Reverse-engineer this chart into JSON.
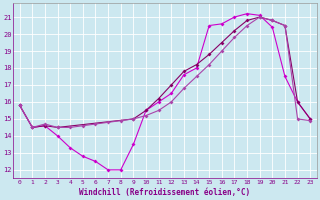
{
  "bg_color": "#cce8f0",
  "grid_color": "#ffffff",
  "line_color_1": "#cc00cc",
  "line_color_2": "#880066",
  "line_color_3": "#aa44aa",
  "xlabel": "Windchill (Refroidissement éolien,°C)",
  "xlim": [
    -0.5,
    23.5
  ],
  "ylim": [
    11.5,
    21.8
  ],
  "yticks": [
    12,
    13,
    14,
    15,
    16,
    17,
    18,
    19,
    20,
    21
  ],
  "xticks": [
    0,
    1,
    2,
    3,
    4,
    5,
    6,
    7,
    8,
    9,
    10,
    11,
    12,
    13,
    14,
    15,
    16,
    17,
    18,
    19,
    20,
    21,
    22,
    23
  ],
  "line1_x": [
    0,
    1,
    2,
    3,
    4,
    5,
    6,
    7,
    8,
    9,
    10,
    11,
    12,
    13,
    14,
    15,
    16,
    17,
    18,
    19,
    20,
    21,
    22,
    23
  ],
  "line1_y": [
    15.8,
    14.5,
    14.6,
    14.0,
    13.3,
    12.8,
    12.5,
    12.0,
    12.0,
    13.5,
    15.5,
    16.0,
    16.5,
    17.6,
    18.0,
    20.5,
    20.6,
    21.0,
    21.2,
    21.1,
    20.4,
    17.5,
    16.0,
    15.0
  ],
  "line2_x": [
    0,
    1,
    2,
    3,
    9,
    10,
    11,
    12,
    13,
    14,
    15,
    16,
    17,
    18,
    19,
    20,
    21,
    22,
    23
  ],
  "line2_y": [
    15.8,
    14.5,
    14.6,
    14.5,
    15.0,
    15.5,
    16.2,
    17.0,
    17.8,
    18.2,
    18.8,
    19.5,
    20.2,
    20.8,
    21.0,
    20.8,
    20.5,
    16.0,
    15.0
  ],
  "line3_x": [
    0,
    1,
    2,
    3,
    4,
    5,
    6,
    7,
    8,
    9,
    10,
    11,
    12,
    13,
    14,
    15,
    16,
    17,
    18,
    19,
    20,
    21,
    22,
    23
  ],
  "line3_y": [
    15.8,
    14.5,
    14.7,
    14.5,
    14.5,
    14.6,
    14.7,
    14.8,
    14.9,
    15.0,
    15.2,
    15.5,
    16.0,
    16.8,
    17.5,
    18.2,
    19.0,
    19.8,
    20.5,
    21.0,
    20.8,
    20.5,
    15.0,
    14.9
  ]
}
